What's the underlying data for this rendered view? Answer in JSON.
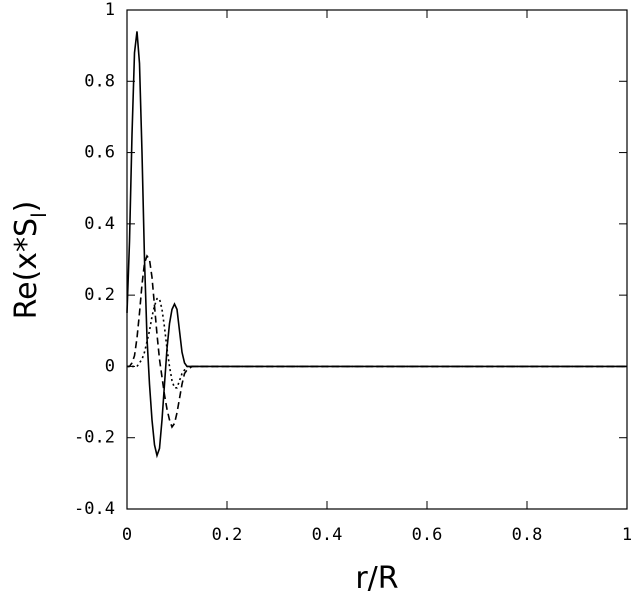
{
  "chart_data": {
    "type": "line",
    "xlabel": "r/R",
    "ylabel": "Re(x*S",
    "ylabel_sub": "l",
    "ylabel_end": ")",
    "x": [
      0,
      0.005,
      0.01,
      0.015,
      0.02,
      0.025,
      0.03,
      0.035,
      0.04,
      0.045,
      0.05,
      0.055,
      0.06,
      0.065,
      0.07,
      0.075,
      0.08,
      0.085,
      0.09,
      0.095,
      0.1,
      0.105,
      0.11,
      0.115,
      0.12,
      0.13,
      0.14,
      0.2,
      1
    ],
    "series": [
      {
        "color": "#000000",
        "dash": "solid",
        "values": [
          0.15,
          0.35,
          0.65,
          0.88,
          0.94,
          0.85,
          0.6,
          0.3,
          0.08,
          -0.05,
          -0.15,
          -0.22,
          -0.25,
          -0.23,
          -0.15,
          -0.05,
          0.05,
          0.12,
          0.16,
          0.175,
          0.16,
          0.1,
          0.04,
          0.01,
          0,
          0,
          0,
          0,
          0
        ]
      },
      {
        "color": "#000000",
        "dash": "dashed",
        "values": [
          0,
          0,
          0.01,
          0.03,
          0.08,
          0.15,
          0.23,
          0.29,
          0.31,
          0.3,
          0.25,
          0.17,
          0.09,
          0.02,
          -0.03,
          -0.08,
          -0.12,
          -0.15,
          -0.17,
          -0.16,
          -0.13,
          -0.09,
          -0.05,
          -0.02,
          -0.01,
          0,
          0,
          0,
          0
        ]
      },
      {
        "color": "#000000",
        "dash": "dotted",
        "values": [
          0,
          0,
          0,
          0,
          0,
          0.01,
          0.02,
          0.04,
          0.07,
          0.1,
          0.14,
          0.17,
          0.19,
          0.19,
          0.16,
          0.11,
          0.05,
          0,
          -0.04,
          -0.06,
          -0.06,
          -0.04,
          -0.02,
          -0.01,
          0,
          0,
          0,
          0,
          0
        ]
      }
    ],
    "xlim": [
      0,
      1
    ],
    "xticks": [
      0,
      0.2,
      0.4,
      0.6,
      0.8,
      1
    ],
    "ylim": [
      -0.4,
      1
    ],
    "yticks": [
      -0.4,
      -0.2,
      0,
      0.2,
      0.4,
      0.6,
      0.8,
      1
    ],
    "grid": false
  }
}
